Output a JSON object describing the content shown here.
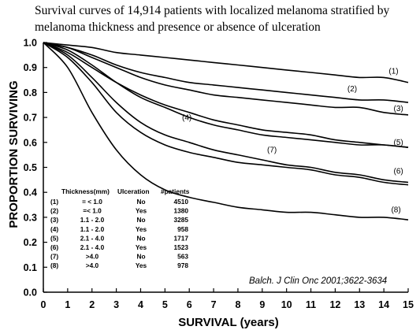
{
  "chart_data": {
    "type": "line",
    "title_lines": [
      "Survival curves of 14,914 patients with localized melanoma stratified by",
      "melanoma thickness and presence or absence of ulceration"
    ],
    "xlabel": "SURVIVAL (years)",
    "ylabel": "PROPORTION SURVIVING",
    "xlim": [
      0,
      15
    ],
    "ylim": [
      0,
      1.0
    ],
    "x_ticks": [
      "0",
      "1",
      "2",
      "3",
      "4",
      "5",
      "6",
      "7",
      "8",
      "9",
      "10",
      "11",
      "12",
      "13",
      "14",
      "15"
    ],
    "y_ticks": [
      "0.0",
      "0.1",
      "0.2",
      "0.3",
      "0.4",
      "0.5",
      "0.6",
      "0.7",
      "0.8",
      "0.9",
      "1.0"
    ],
    "grid": false,
    "series": [
      {
        "name": "(1)",
        "x": [
          0,
          1,
          2,
          3,
          4,
          5,
          6,
          7,
          8,
          9,
          10,
          11,
          12,
          13,
          14,
          15
        ],
        "y": [
          1.0,
          0.99,
          0.98,
          0.96,
          0.95,
          0.94,
          0.93,
          0.92,
          0.91,
          0.9,
          0.89,
          0.88,
          0.87,
          0.86,
          0.86,
          0.84
        ]
      },
      {
        "name": "(2)",
        "x": [
          0,
          1,
          2,
          3,
          4,
          5,
          6,
          7,
          8,
          9,
          10,
          11,
          12,
          13,
          14,
          15
        ],
        "y": [
          1.0,
          0.98,
          0.95,
          0.91,
          0.88,
          0.86,
          0.84,
          0.83,
          0.82,
          0.81,
          0.8,
          0.79,
          0.78,
          0.77,
          0.77,
          0.76
        ]
      },
      {
        "name": "(3)",
        "x": [
          0,
          1,
          2,
          3,
          4,
          5,
          6,
          7,
          8,
          9,
          10,
          11,
          12,
          13,
          14,
          15
        ],
        "y": [
          1.0,
          0.98,
          0.94,
          0.9,
          0.86,
          0.83,
          0.81,
          0.79,
          0.78,
          0.77,
          0.76,
          0.75,
          0.74,
          0.74,
          0.72,
          0.71
        ]
      },
      {
        "name": "(4)",
        "x": [
          0,
          1,
          2,
          3,
          4,
          5,
          6,
          7,
          8,
          9,
          10,
          11,
          12,
          13,
          14,
          15
        ],
        "y": [
          1.0,
          0.96,
          0.9,
          0.84,
          0.79,
          0.75,
          0.72,
          0.69,
          0.67,
          0.65,
          0.64,
          0.63,
          0.61,
          0.6,
          0.59,
          0.58
        ]
      },
      {
        "name": "(5)",
        "x": [
          0,
          1,
          2,
          3,
          4,
          5,
          6,
          7,
          8,
          9,
          10,
          11,
          12,
          13,
          14,
          15
        ],
        "y": [
          1.0,
          0.97,
          0.91,
          0.84,
          0.78,
          0.74,
          0.7,
          0.67,
          0.65,
          0.63,
          0.62,
          0.61,
          0.6,
          0.59,
          0.59,
          0.58
        ]
      },
      {
        "name": "(6)",
        "x": [
          0,
          1,
          2,
          3,
          4,
          5,
          6,
          7,
          8,
          9,
          10,
          11,
          12,
          13,
          14,
          15
        ],
        "y": [
          1.0,
          0.95,
          0.86,
          0.76,
          0.68,
          0.63,
          0.6,
          0.57,
          0.55,
          0.53,
          0.51,
          0.5,
          0.48,
          0.47,
          0.45,
          0.44
        ]
      },
      {
        "name": "(7)",
        "x": [
          0,
          1,
          2,
          3,
          4,
          5,
          6,
          7,
          8,
          9,
          10,
          11,
          12,
          13,
          14,
          15
        ],
        "y": [
          1.0,
          0.94,
          0.84,
          0.72,
          0.64,
          0.59,
          0.56,
          0.54,
          0.52,
          0.51,
          0.5,
          0.49,
          0.47,
          0.46,
          0.44,
          0.43
        ]
      },
      {
        "name": "(8)",
        "x": [
          0,
          1,
          2,
          3,
          4,
          5,
          6,
          7,
          8,
          9,
          10,
          11,
          12,
          13,
          14,
          15
        ],
        "y": [
          1.0,
          0.9,
          0.72,
          0.57,
          0.47,
          0.41,
          0.38,
          0.36,
          0.34,
          0.33,
          0.32,
          0.32,
          0.31,
          0.3,
          0.3,
          0.29
        ]
      }
    ],
    "legend": {
      "headers": [
        "Thickness(mm)",
        "Ulceration",
        "#patients"
      ],
      "rows": [
        {
          "id": "(1)",
          "thickness": "= < 1.0",
          "ulceration": "No",
          "patients": "4510"
        },
        {
          "id": "(2)",
          "thickness": "=< 1.0",
          "ulceration": "Yes",
          "patients": "1380"
        },
        {
          "id": "(3)",
          "thickness": "1.1 - 2.0",
          "ulceration": "No",
          "patients": "3285"
        },
        {
          "id": "(4)",
          "thickness": "1.1 - 2.0",
          "ulceration": "Yes",
          "patients": "958"
        },
        {
          "id": "(5)",
          "thickness": "2.1 - 4.0",
          "ulceration": "No",
          "patients": "1717"
        },
        {
          "id": "(6)",
          "thickness": "2.1 - 4.0",
          "ulceration": "Yes",
          "patients": "1523"
        },
        {
          "id": "(7)",
          "thickness": ">4.0",
          "ulceration": "No",
          "patients": "563"
        },
        {
          "id": "(8)",
          "thickness": ">4.0",
          "ulceration": "Yes",
          "patients": "978"
        }
      ]
    },
    "annotation": "Balch. J Clin Onc 2001;3622-3634"
  }
}
